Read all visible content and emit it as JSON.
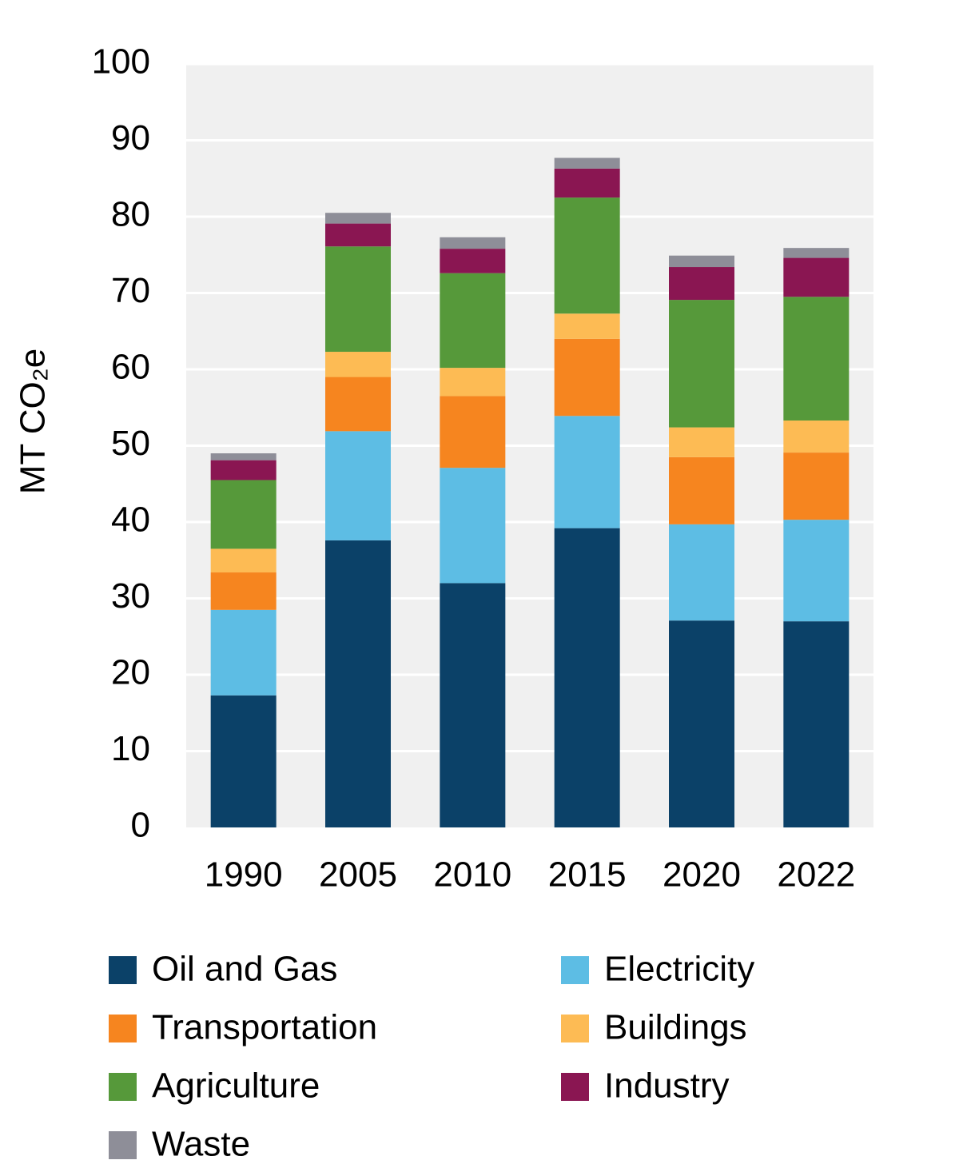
{
  "chart_data": {
    "type": "stacked_bar",
    "y_label": "MT CO₂e",
    "categories": [
      "1990",
      "2005",
      "2010",
      "2015",
      "2020",
      "2022"
    ],
    "series": [
      {
        "name": "Oil and Gas",
        "color": "#0b4168",
        "values": [
          17.3,
          37.6,
          32.0,
          39.2,
          27.1,
          27.0
        ]
      },
      {
        "name": "Electricity",
        "color": "#5dbde4",
        "values": [
          11.2,
          14.3,
          15.1,
          14.7,
          12.6,
          13.3
        ]
      },
      {
        "name": "Transportation",
        "color": "#f6851f",
        "values": [
          4.9,
          7.1,
          9.4,
          10.1,
          8.8,
          8.8
        ]
      },
      {
        "name": "Buildings",
        "color": "#fdbb54",
        "values": [
          3.1,
          3.3,
          3.7,
          3.3,
          3.9,
          4.2
        ]
      },
      {
        "name": "Agriculture",
        "color": "#56993a",
        "values": [
          9.0,
          13.8,
          12.4,
          15.2,
          16.7,
          16.2
        ]
      },
      {
        "name": "Industry",
        "color": "#8a1652",
        "values": [
          2.6,
          3.0,
          3.2,
          3.8,
          4.3,
          5.1
        ]
      },
      {
        "name": "Waste",
        "color": "#8e8e98",
        "values": [
          0.9,
          1.4,
          1.5,
          1.4,
          1.5,
          1.3
        ]
      }
    ],
    "ylim": [
      0,
      100
    ],
    "yticks": [
      0,
      10,
      20,
      30,
      40,
      50,
      60,
      70,
      80,
      90,
      100
    ],
    "grid": true,
    "legend": "bottom"
  }
}
